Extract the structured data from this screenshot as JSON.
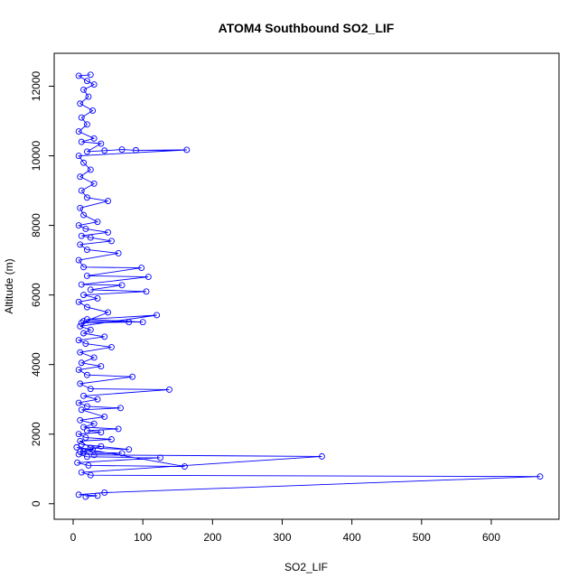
{
  "chart_data": {
    "type": "scatter",
    "title": "ATOM4 Southbound SO2_LIF",
    "xlabel": "SO2_LIF",
    "ylabel": "Altitude (m)",
    "xlim": [
      0,
      670
    ],
    "ylim": [
      150,
      12350
    ],
    "xticks": [
      0,
      100,
      200,
      300,
      400,
      500,
      600
    ],
    "yticks": [
      0,
      2000,
      4000,
      6000,
      8000,
      10000,
      12000
    ],
    "grid": false,
    "legend": "none",
    "connected": true,
    "color": "#0000ff",
    "series": [
      {
        "values": [
          [
            18,
            200
          ],
          [
            35,
            230
          ],
          [
            8,
            260
          ],
          [
            45,
            320
          ],
          [
            670,
            780
          ],
          [
            25,
            820
          ],
          [
            12,
            900
          ],
          [
            357,
            1360
          ],
          [
            30,
            1400
          ],
          [
            10,
            1500
          ],
          [
            28,
            1560
          ],
          [
            5,
            1620
          ],
          [
            160,
            1070
          ],
          [
            22,
            1100
          ],
          [
            6,
            1180
          ],
          [
            125,
            1320
          ],
          [
            20,
            1350
          ],
          [
            8,
            1420
          ],
          [
            70,
            1450
          ],
          [
            15,
            1500
          ],
          [
            40,
            1650
          ],
          [
            12,
            1700
          ],
          [
            80,
            1560
          ],
          [
            25,
            1600
          ],
          [
            10,
            1800
          ],
          [
            55,
            1850
          ],
          [
            18,
            1900
          ],
          [
            8,
            2000
          ],
          [
            40,
            2050
          ],
          [
            20,
            2100
          ],
          [
            65,
            2150
          ],
          [
            15,
            2200
          ],
          [
            30,
            2300
          ],
          [
            10,
            2400
          ],
          [
            45,
            2500
          ],
          [
            12,
            2700
          ],
          [
            68,
            2750
          ],
          [
            20,
            2800
          ],
          [
            8,
            2900
          ],
          [
            35,
            3000
          ],
          [
            15,
            3100
          ],
          [
            138,
            3280
          ],
          [
            25,
            3300
          ],
          [
            10,
            3450
          ],
          [
            85,
            3650
          ],
          [
            20,
            3700
          ],
          [
            8,
            3850
          ],
          [
            40,
            3950
          ],
          [
            12,
            4050
          ],
          [
            30,
            4200
          ],
          [
            10,
            4350
          ],
          [
            55,
            4500
          ],
          [
            18,
            4600
          ],
          [
            8,
            4700
          ],
          [
            45,
            4800
          ],
          [
            15,
            4900
          ],
          [
            25,
            5000
          ],
          [
            10,
            5100
          ],
          [
            120,
            5420
          ],
          [
            20,
            5300
          ],
          [
            100,
            5220
          ],
          [
            15,
            5250
          ],
          [
            80,
            5220
          ],
          [
            12,
            5200
          ],
          [
            50,
            5500
          ],
          [
            20,
            5650
          ],
          [
            8,
            5800
          ],
          [
            35,
            5900
          ],
          [
            15,
            6000
          ],
          [
            105,
            6100
          ],
          [
            25,
            6150
          ],
          [
            70,
            6280
          ],
          [
            12,
            6300
          ],
          [
            108,
            6520
          ],
          [
            20,
            6550
          ],
          [
            98,
            6780
          ],
          [
            15,
            6800
          ],
          [
            8,
            7000
          ],
          [
            65,
            7200
          ],
          [
            20,
            7300
          ],
          [
            10,
            7450
          ],
          [
            55,
            7550
          ],
          [
            25,
            7650
          ],
          [
            12,
            7700
          ],
          [
            50,
            7800
          ],
          [
            18,
            7900
          ],
          [
            8,
            8000
          ],
          [
            35,
            8100
          ],
          [
            15,
            8300
          ],
          [
            10,
            8500
          ],
          [
            50,
            8700
          ],
          [
            20,
            8800
          ],
          [
            12,
            9000
          ],
          [
            30,
            9200
          ],
          [
            10,
            9400
          ],
          [
            25,
            9600
          ],
          [
            15,
            9800
          ],
          [
            8,
            10000
          ],
          [
            163,
            10170
          ],
          [
            90,
            10160
          ],
          [
            70,
            10180
          ],
          [
            45,
            10150
          ],
          [
            20,
            10120
          ],
          [
            40,
            10350
          ],
          [
            12,
            10400
          ],
          [
            30,
            10500
          ],
          [
            8,
            10700
          ],
          [
            20,
            10900
          ],
          [
            12,
            11100
          ],
          [
            28,
            11300
          ],
          [
            10,
            11500
          ],
          [
            22,
            11700
          ],
          [
            15,
            11900
          ],
          [
            30,
            12050
          ],
          [
            20,
            12150
          ],
          [
            8,
            12300
          ],
          [
            25,
            12330
          ]
        ]
      }
    ]
  }
}
